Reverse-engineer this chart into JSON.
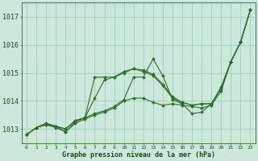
{
  "xlabel": "Graphe pression niveau de la mer (hPa)",
  "background_color": "#cce8dc",
  "grid_color": "#9dc8b4",
  "line_color": "#2d6e2d",
  "xlim": [
    -0.5,
    23.5
  ],
  "ylim": [
    1012.5,
    1017.5
  ],
  "yticks": [
    1013,
    1014,
    1015,
    1016,
    1017
  ],
  "xtick_labels": [
    "0",
    "1",
    "2",
    "3",
    "4",
    "5",
    "6",
    "7",
    "8",
    "9",
    "10",
    "11",
    "12",
    "13",
    "14",
    "15",
    "16",
    "17",
    "18",
    "19",
    "20",
    "21",
    "22",
    "23"
  ],
  "series": [
    [
      1012.8,
      1013.05,
      1013.15,
      1013.1,
      1012.9,
      1013.2,
      1013.35,
      1013.5,
      1013.6,
      1013.75,
      1014.0,
      1014.1,
      1014.1,
      1013.95,
      1013.85,
      1013.9,
      1013.85,
      1013.8,
      1013.75,
      1013.85,
      1014.35,
      1015.4,
      1016.1,
      1017.25
    ],
    [
      1012.8,
      1013.05,
      1013.15,
      1013.05,
      1012.9,
      1013.25,
      1013.4,
      1013.55,
      1013.65,
      1013.8,
      1014.05,
      1014.85,
      1014.85,
      1015.5,
      1014.9,
      1014.05,
      1013.9,
      1013.55,
      1013.6,
      1013.9,
      1014.5,
      1015.4,
      1016.1,
      1017.25
    ],
    [
      1012.8,
      1013.05,
      1013.2,
      1013.1,
      1013.0,
      1013.3,
      1013.4,
      1014.1,
      1014.75,
      1014.85,
      1015.0,
      1015.15,
      1015.1,
      1014.95,
      1014.6,
      1014.15,
      1013.95,
      1013.85,
      1013.9,
      1013.9,
      1014.45,
      1015.4,
      1016.1,
      1017.25
    ],
    [
      1012.8,
      1013.05,
      1013.2,
      1013.1,
      1013.0,
      1013.3,
      1013.4,
      1014.85,
      1014.85,
      1014.85,
      1015.05,
      1015.15,
      1015.05,
      1014.9,
      1014.55,
      1014.1,
      1013.95,
      1013.85,
      1013.9,
      1013.9,
      1014.45,
      1015.4,
      1016.1,
      1017.25
    ]
  ]
}
